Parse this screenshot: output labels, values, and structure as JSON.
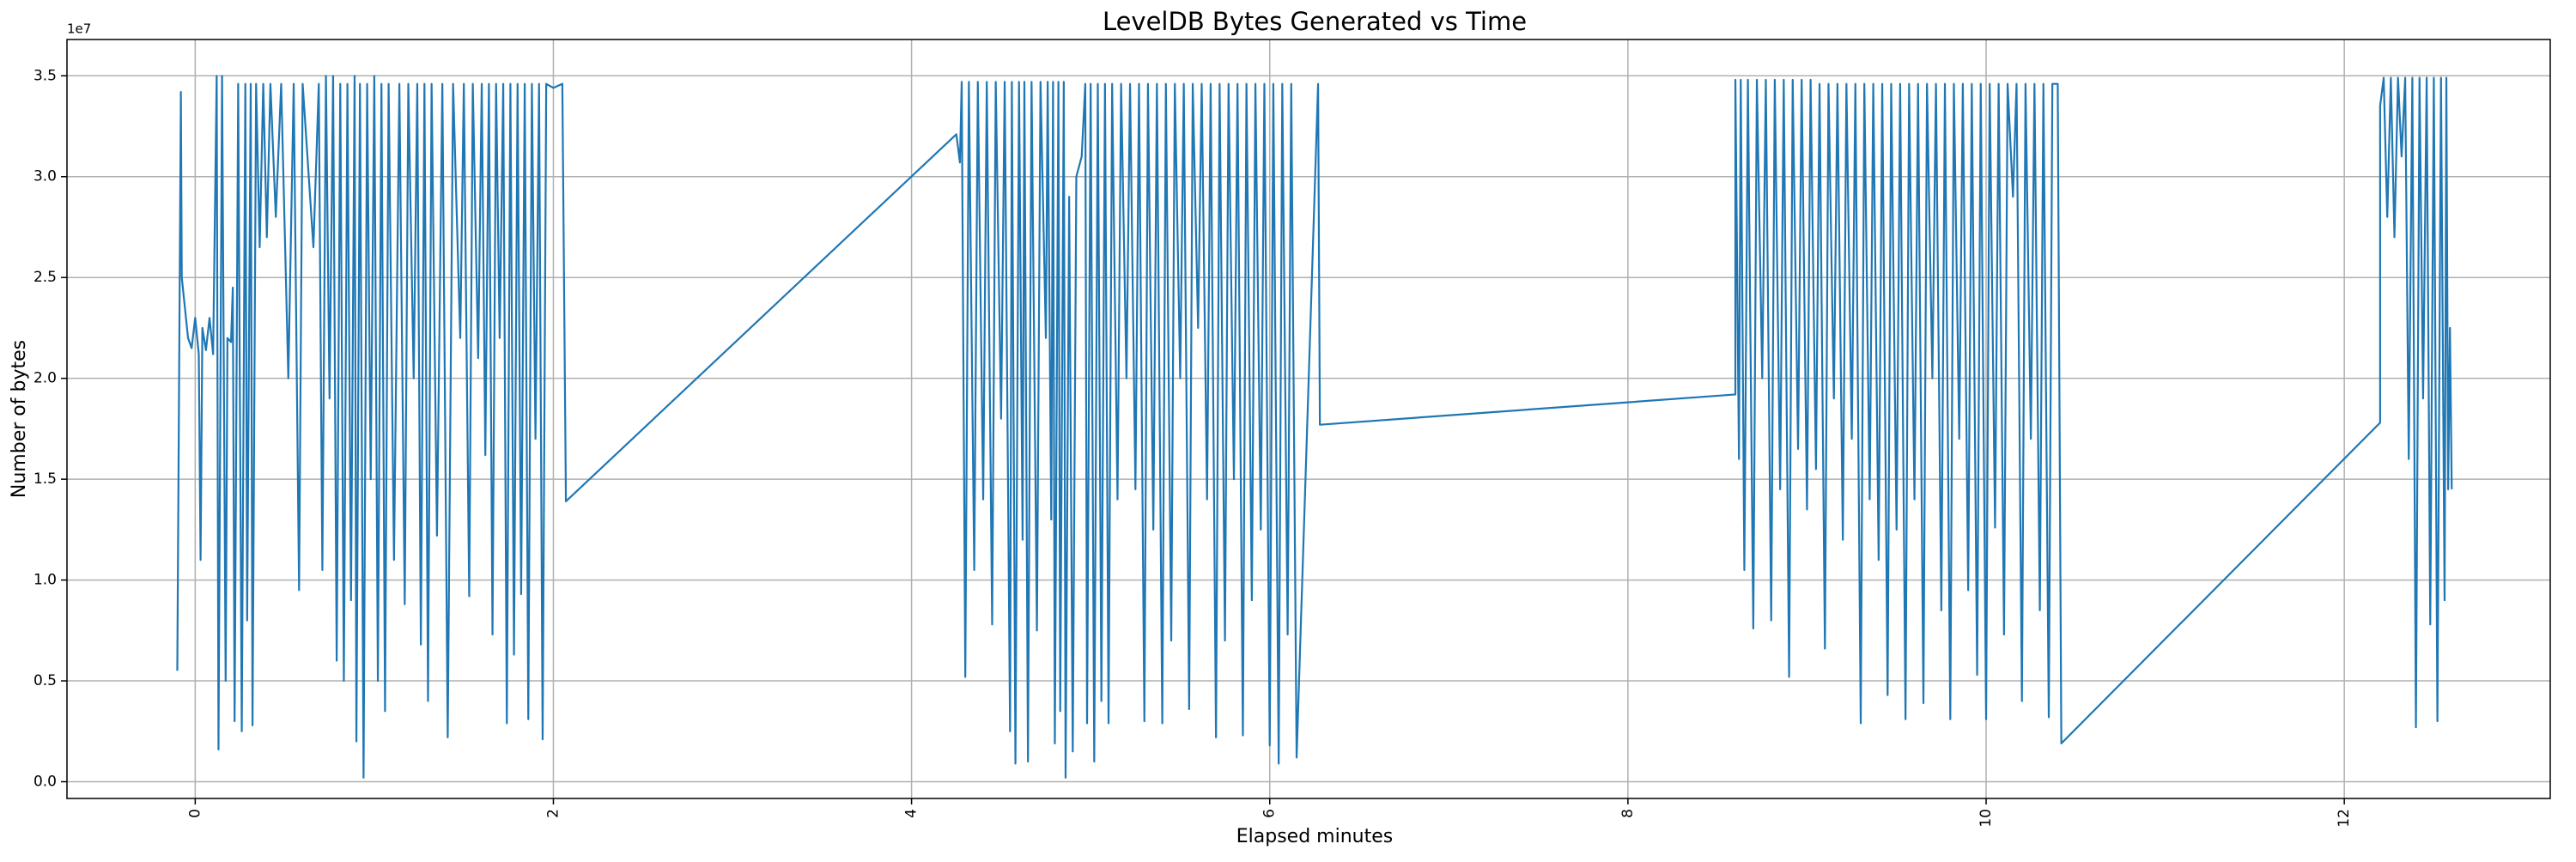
{
  "chart_data": {
    "type": "line",
    "title": "LevelDB Bytes Generated vs Time",
    "xlabel": "Elapsed minutes",
    "ylabel": "Number of bytes",
    "y_offset_label": "1e7",
    "xlim": [
      -0.716,
      13.15
    ],
    "ylim": [
      -830000,
      36800000
    ],
    "xticks": [
      0,
      2,
      4,
      6,
      8,
      10,
      12
    ],
    "yticks": [
      {
        "value": 0,
        "label": "0.0"
      },
      {
        "value": 5000000,
        "label": "0.5"
      },
      {
        "value": 10000000,
        "label": "1.0"
      },
      {
        "value": 15000000,
        "label": "1.5"
      },
      {
        "value": 20000000,
        "label": "2.0"
      },
      {
        "value": 25000000,
        "label": "2.5"
      },
      {
        "value": 30000000,
        "label": "3.0"
      },
      {
        "value": 35000000,
        "label": "3.5"
      }
    ],
    "grid": true,
    "series": [
      {
        "color": "#1f77b4",
        "x": [
          -0.1,
          -0.08,
          -0.075,
          -0.04,
          -0.02,
          0,
          0.02,
          0.03,
          0.04,
          0.06,
          0.08,
          0.1,
          0.12,
          0.13,
          0.15,
          0.17,
          0.18,
          0.2,
          0.21,
          0.22,
          0.24,
          0.26,
          0.28,
          0.29,
          0.31,
          0.32,
          0.34,
          0.36,
          0.38,
          0.4,
          0.42,
          0.45,
          0.48,
          0.52,
          0.55,
          0.58,
          0.6,
          0.66,
          0.69,
          0.71,
          0.73,
          0.75,
          0.77,
          0.79,
          0.81,
          0.83,
          0.85,
          0.87,
          0.89,
          0.9,
          0.92,
          0.94,
          0.96,
          0.98,
          1.0,
          1.02,
          1.04,
          1.06,
          1.08,
          1.11,
          1.14,
          1.17,
          1.19,
          1.22,
          1.24,
          1.26,
          1.28,
          1.3,
          1.32,
          1.35,
          1.38,
          1.41,
          1.44,
          1.48,
          1.5,
          1.53,
          1.55,
          1.58,
          1.6,
          1.62,
          1.64,
          1.66,
          1.68,
          1.7,
          1.72,
          1.74,
          1.76,
          1.78,
          1.8,
          1.82,
          1.84,
          1.86,
          1.88,
          1.9,
          1.92,
          1.94,
          1.96,
          2.0,
          2.05,
          2.07,
          4.25,
          4.27,
          4.28,
          4.3,
          4.32,
          4.35,
          4.37,
          4.4,
          4.42,
          4.45,
          4.47,
          4.5,
          4.52,
          4.55,
          4.56,
          4.58,
          4.6,
          4.62,
          4.63,
          4.65,
          4.67,
          4.7,
          4.72,
          4.75,
          4.76,
          4.78,
          4.79,
          4.8,
          4.82,
          4.83,
          4.85,
          4.86,
          4.88,
          4.9,
          4.92,
          4.95,
          4.97,
          4.98,
          5.0,
          5.02,
          5.04,
          5.06,
          5.08,
          5.1,
          5.12,
          5.15,
          5.17,
          5.2,
          5.22,
          5.25,
          5.27,
          5.3,
          5.32,
          5.35,
          5.37,
          5.4,
          5.42,
          5.45,
          5.47,
          5.5,
          5.52,
          5.55,
          5.57,
          5.6,
          5.62,
          5.65,
          5.67,
          5.7,
          5.72,
          5.75,
          5.77,
          5.8,
          5.82,
          5.85,
          5.87,
          5.9,
          5.92,
          5.95,
          5.97,
          6.0,
          6.02,
          6.05,
          6.07,
          6.1,
          6.12,
          6.15,
          6.27,
          6.28,
          8.6,
          8.6,
          8.62,
          8.63,
          8.65,
          8.67,
          8.7,
          8.72,
          8.75,
          8.77,
          8.8,
          8.82,
          8.85,
          8.87,
          8.9,
          8.92,
          8.95,
          8.97,
          9.0,
          9.02,
          9.05,
          9.07,
          9.1,
          9.12,
          9.15,
          9.17,
          9.2,
          9.22,
          9.25,
          9.27,
          9.3,
          9.32,
          9.35,
          9.37,
          9.4,
          9.42,
          9.45,
          9.47,
          9.5,
          9.52,
          9.55,
          9.57,
          9.6,
          9.62,
          9.65,
          9.67,
          9.7,
          9.72,
          9.75,
          9.77,
          9.8,
          9.82,
          9.85,
          9.87,
          9.9,
          9.92,
          9.95,
          9.97,
          10.0,
          10.02,
          10.05,
          10.07,
          10.1,
          10.12,
          10.15,
          10.17,
          10.2,
          10.22,
          10.25,
          10.27,
          10.3,
          10.32,
          10.35,
          10.37,
          10.4,
          10.42,
          12.2,
          12.2,
          12.22,
          12.24,
          12.26,
          12.28,
          12.3,
          12.32,
          12.34,
          12.36,
          12.38,
          12.4,
          12.42,
          12.44,
          12.46,
          12.48,
          12.5,
          12.52,
          12.54,
          12.56,
          12.57,
          12.58,
          12.59,
          12.6
        ],
        "values": [
          5500000.0,
          34200000.0,
          25000000.0,
          22000000.0,
          21500000.0,
          23000000.0,
          21200000.0,
          11000000.0,
          22500000.0,
          21400000.0,
          23000000.0,
          21200000.0,
          35000000.0,
          1600000.0,
          35000000.0,
          5000000.0,
          22000000.0,
          21800000.0,
          24500000.0,
          3000000.0,
          34600000.0,
          2500000.0,
          34600000.0,
          8000000.0,
          34600000.0,
          2800000.0,
          34600000.0,
          26500000.0,
          34600000.0,
          27000000.0,
          34600000.0,
          28000000.0,
          34600000.0,
          20000000.0,
          34600000.0,
          9500000.0,
          34600000.0,
          26500000.0,
          34600000.0,
          10500000.0,
          35000000.0,
          19000000.0,
          35000000.0,
          6000000.0,
          34600000.0,
          5000000.0,
          34600000.0,
          9000000.0,
          35000000.0,
          2000000.0,
          34600000.0,
          200000.0,
          34600000.0,
          15000000.0,
          35000000.0,
          5000000.0,
          34600000.0,
          3500000.0,
          34600000.0,
          11000000.0,
          34600000.0,
          8800000.0,
          34600000.0,
          20000000.0,
          34600000.0,
          6800000.0,
          34600000.0,
          4000000.0,
          34600000.0,
          12200000.0,
          34600000.0,
          2200000.0,
          34600000.0,
          22000000.0,
          34600000.0,
          9200000.0,
          34600000.0,
          21000000.0,
          34600000.0,
          16200000.0,
          34600000.0,
          7300000.0,
          34600000.0,
          22000000.0,
          34600000.0,
          2900000.0,
          34600000.0,
          6300000.0,
          34600000.0,
          9300000.0,
          34600000.0,
          3100000.0,
          34600000.0,
          17000000.0,
          34600000.0,
          2100000.0,
          34600000.0,
          34400000.0,
          34600000.0,
          13900000.0,
          32100000.0,
          30700000.0,
          34700000.0,
          5200000.0,
          34700000.0,
          10500000.0,
          34700000.0,
          14000000.0,
          34700000.0,
          7800000.0,
          34700000.0,
          18000000.0,
          34700000.0,
          2500000.0,
          34700000.0,
          900000.0,
          34700000.0,
          12000000.0,
          34700000.0,
          1000000.0,
          34700000.0,
          7500000.0,
          34700000.0,
          22000000.0,
          34700000.0,
          13000000.0,
          34700000.0,
          1900000.0,
          34700000.0,
          3500000.0,
          34700000.0,
          200000.0,
          29000000.0,
          1500000.0,
          30000000.0,
          31000000.0,
          34600000.0,
          2900000.0,
          34600000.0,
          1000000.0,
          34600000.0,
          4000000.0,
          34600000.0,
          2900000.0,
          34600000.0,
          14000000.0,
          34600000.0,
          20000000.0,
          34600000.0,
          14500000.0,
          34600000.0,
          3000000.0,
          34600000.0,
          12500000.0,
          34600000.0,
          2900000.0,
          34600000.0,
          7000000.0,
          34600000.0,
          20000000.0,
          34600000.0,
          3600000.0,
          34600000.0,
          22500000.0,
          34600000.0,
          14000000.0,
          34600000.0,
          2200000.0,
          34600000.0,
          7000000.0,
          34600000.0,
          15000000.0,
          34600000.0,
          2300000.0,
          34600000.0,
          9000000.0,
          34600000.0,
          12500000.0,
          34600000.0,
          1800000.0,
          34600000.0,
          900000.0,
          34600000.0,
          7300000.0,
          34600000.0,
          1200000.0,
          34600000.0,
          17700000.0,
          19200000.0,
          34800000.0,
          16000000.0,
          34800000.0,
          10500000.0,
          34800000.0,
          7600000.0,
          34800000.0,
          20000000.0,
          34800000.0,
          8000000.0,
          34800000.0,
          14500000.0,
          34800000.0,
          5200000.0,
          34800000.0,
          16500000.0,
          34800000.0,
          13500000.0,
          34800000.0,
          15500000.0,
          34600000.0,
          6600000.0,
          34600000.0,
          19000000.0,
          34600000.0,
          12000000.0,
          34600000.0,
          17000000.0,
          34600000.0,
          2900000.0,
          34600000.0,
          14000000.0,
          34600000.0,
          11000000.0,
          34600000.0,
          4300000.0,
          34600000.0,
          12500000.0,
          34600000.0,
          3100000.0,
          34600000.0,
          14000000.0,
          34600000.0,
          3900000.0,
          34600000.0,
          20000000.0,
          34600000.0,
          8500000.0,
          34600000.0,
          3100000.0,
          34600000.0,
          17000000.0,
          34600000.0,
          9500000.0,
          34600000.0,
          5300000.0,
          34600000.0,
          3100000.0,
          34600000.0,
          12600000.0,
          34600000.0,
          7300000.0,
          34600000.0,
          29000000.0,
          34600000.0,
          4000000.0,
          34600000.0,
          17000000.0,
          34600000.0,
          8500000.0,
          34600000.0,
          3200000.0,
          34600000.0,
          34600000.0,
          1900000.0,
          17800000.0,
          33500000.0,
          34900000.0,
          28000000.0,
          34900000.0,
          27000000.0,
          34900000.0,
          31000000.0,
          34900000.0,
          16000000.0,
          34900000.0,
          2700000.0,
          34900000.0,
          19000000.0,
          34900000.0,
          7800000.0,
          34900000.0,
          3000000.0,
          34900000.0,
          9000000.0,
          34900000.0,
          14500000.0,
          22500000.0,
          14500000.0
        ]
      }
    ]
  }
}
